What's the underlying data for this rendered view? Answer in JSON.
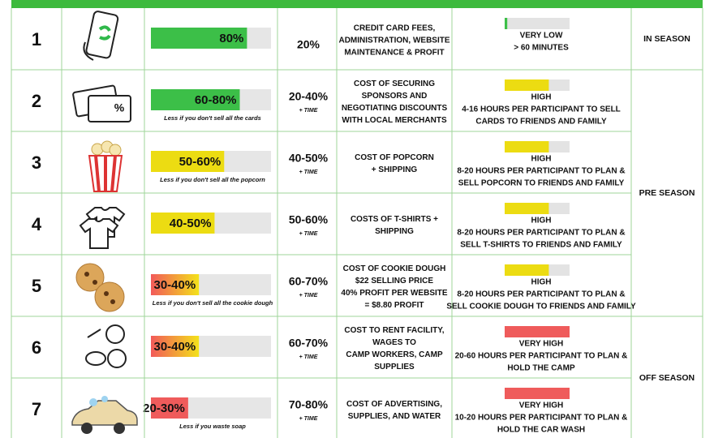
{
  "rows": [
    {
      "number": "1",
      "bar_value": 80,
      "bar_label": "80%",
      "bar_colors": [
        "#3cbf48"
      ],
      "cost": "20%",
      "description": [
        "CREDIT CARD FEES,",
        "ADMINISTRATION, WEBSITE",
        "MAINTENANCE & PROFIT"
      ],
      "effort_level": "VERY LOW",
      "effort_color": "#3cbf48",
      "effort_bar": 4,
      "effort_text": [
        "> 60 MINUTES"
      ]
    },
    {
      "number": "2",
      "bar_value": 74,
      "bar_label": "60-80%",
      "bar_colors": [
        "#3cbf48"
      ],
      "note": "Less if you don't sell all the cards",
      "cost": "20-40%",
      "cost_note": "+ TIME",
      "description": [
        "COST OF SECURING",
        "SPONSORS AND",
        "NEGOTIATING DISCOUNTS",
        "WITH LOCAL MERCHANTS"
      ],
      "effort_level": "HIGH",
      "effort_color": "#ecdc12",
      "effort_bar": 68,
      "effort_text": [
        "4-16 HOURS PER PARTICIPANT TO SELL",
        "CARDS TO FRIENDS AND FAMILY"
      ]
    },
    {
      "number": "3",
      "bar_value": 61,
      "bar_label": "50-60%",
      "bar_colors": [
        "#ecdc12"
      ],
      "note": "Less if you don't sell all the popcorn",
      "cost": "40-50%",
      "cost_note": "+ TIME",
      "description": [
        "COST OF POPCORN",
        "+ SHIPPING"
      ],
      "effort_level": "HIGH",
      "effort_color": "#ecdc12",
      "effort_bar": 68,
      "effort_text": [
        "8-20 HOURS PER PARTICIPANT TO PLAN &",
        "SELL POPCORN TO FRIENDS AND FAMILY"
      ]
    },
    {
      "number": "4",
      "bar_value": 53,
      "bar_label": "40-50%",
      "bar_colors": [
        "#ecdc12"
      ],
      "cost": "50-60%",
      "cost_note": "+ TIME",
      "description": [
        "COSTS OF T-SHIRTS +",
        "SHIPPING"
      ],
      "effort_level": "HIGH",
      "effort_color": "#ecdc12",
      "effort_bar": 68,
      "effort_text": [
        "8-20 HOURS PER PARTICIPANT TO PLAN &",
        "SELL T-SHIRTS TO FRIENDS AND FAMILY"
      ]
    },
    {
      "number": "5",
      "bar_value": 40,
      "bar_label": "30-40%",
      "bar_colors": [
        "#f25a5a",
        "#f3e21a"
      ],
      "note": "Less if you don't sell all the  cookie dough",
      "cost": "60-70%",
      "cost_note": "+ TIME",
      "description": [
        "COST OF COOKIE DOUGH",
        "$22 SELLING PRICE",
        "40% PROFIT PER WEBSITE",
        "= $8.80 PROFIT"
      ],
      "effort_level": "HIGH",
      "effort_color": "#ecdc12",
      "effort_bar": 68,
      "effort_text": [
        "8-20 HOURS PER PARTICIPANT TO PLAN &",
        "SELL COOKIE DOUGH TO FRIENDS AND FAMILY"
      ]
    },
    {
      "number": "6",
      "bar_value": 40,
      "bar_label": "30-40%",
      "bar_colors": [
        "#f25a5a",
        "#f3e21a"
      ],
      "cost": "60-70%",
      "cost_note": "+ TIME",
      "description": [
        "COST TO RENT FACILITY,",
        "WAGES TO",
        "CAMP WORKERS, CAMP",
        "SUPPLIES"
      ],
      "effort_level": "VERY HIGH",
      "effort_color": "#ef5b5b",
      "effort_bar": 100,
      "effort_text": [
        "20-60 HOURS PER PARTICIPANT TO PLAN &",
        "HOLD THE CAMP"
      ]
    },
    {
      "number": "7",
      "bar_value": 31,
      "bar_label": "20-30%",
      "bar_colors": [
        "#ef5b5b"
      ],
      "note": "Less if you waste soap",
      "cost": "70-80%",
      "cost_note": "+ TIME",
      "description": [
        "COST OF ADVERTISING,",
        "SUPPLIES, AND WATER"
      ],
      "effort_level": "VERY HIGH",
      "effort_color": "#ef5b5b",
      "effort_bar": 100,
      "effort_text": [
        "10-20 HOURS PER PARTICIPANT TO PLAN &",
        "HOLD THE CAR WASH"
      ]
    }
  ],
  "seasons": [
    "IN SEASON",
    "PRE SEASON",
    "OFF SEASON"
  ]
}
